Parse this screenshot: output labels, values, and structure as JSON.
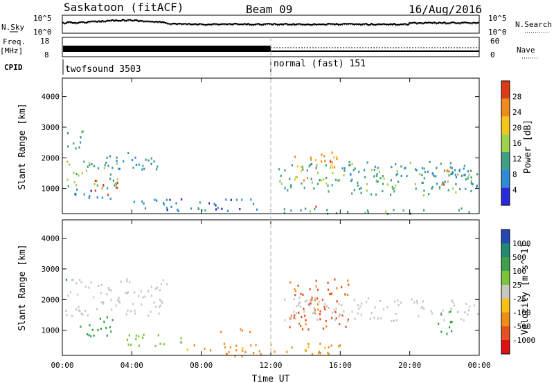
{
  "header": {
    "station": "Saskatoon (fitACF)",
    "beam": "Beam 09",
    "date": "16/Aug/2016"
  },
  "aux_panels": {
    "nsky_label": "N.Sky",
    "nsearch_label": "N.Search",
    "noise_ticks_left": [
      "10^5",
      "10^0"
    ],
    "noise_ticks_right": [
      "10^5",
      "10^0"
    ],
    "freq_label_line1": "Freq.",
    "freq_label_line2": "[MHz]",
    "freq_ticks": [
      "18",
      "8"
    ],
    "nave_label": "Nave",
    "nave_ticks": [
      "60",
      "0"
    ],
    "cpid_label": "CPID",
    "cpid_segments": [
      {
        "name": "twofsound 3503",
        "start_hour": 0,
        "end_hour": 12
      },
      {
        "name": "normal (fast) 151",
        "start_hour": 12,
        "end_hour": 24
      }
    ]
  },
  "chart_data": [
    {
      "type": "heatmap",
      "title": "",
      "ylabel": "Slant Range [km]",
      "ylim": [
        180,
        4600
      ],
      "yticks": [
        "1000",
        "2000",
        "3000",
        "4000"
      ],
      "xlim_hours": [
        0,
        24
      ],
      "colorbar": {
        "label": "Power [dB]",
        "ticks": [
          "4",
          "8",
          "12",
          "16",
          "20",
          "24",
          "28"
        ],
        "range": [
          0,
          32
        ],
        "colors": [
          "#2a2ad8",
          "#2e8bd8",
          "#3f9f86",
          "#9fd14a",
          "#f4c51b",
          "#f08a1a",
          "#e03a15"
        ]
      },
      "blobs": [
        {
          "t0": 0.1,
          "t1": 3.3,
          "r0": 1100,
          "r1": 2050,
          "level": 14
        },
        {
          "t0": 0.2,
          "t1": 1.5,
          "r0": 2300,
          "r1": 2950,
          "level": 10
        },
        {
          "t0": 2.5,
          "t1": 5.5,
          "r0": 1500,
          "r1": 2200,
          "level": 9
        },
        {
          "t0": 0.6,
          "t1": 3.2,
          "r0": 700,
          "r1": 1100,
          "level": 8
        },
        {
          "t0": 1.6,
          "t1": 3.2,
          "r0": 800,
          "r1": 1300,
          "level": 27
        },
        {
          "t0": 4.0,
          "t1": 11.5,
          "r0": 250,
          "r1": 700,
          "level": 6
        },
        {
          "t0": 12.4,
          "t1": 24.0,
          "r0": 800,
          "r1": 1900,
          "level": 12
        },
        {
          "t0": 13.3,
          "t1": 15.8,
          "r0": 1200,
          "r1": 2100,
          "level": 22
        },
        {
          "t0": 14.6,
          "t1": 15.6,
          "r0": 1900,
          "r1": 2250,
          "level": 28
        },
        {
          "t0": 14.0,
          "t1": 15.2,
          "r0": 350,
          "r1": 450,
          "level": 29
        },
        {
          "t0": 21.6,
          "t1": 22.4,
          "r0": 1150,
          "r1": 1700,
          "level": 25
        },
        {
          "t0": 16.0,
          "t1": 23.5,
          "r0": 1350,
          "r1": 1800,
          "level": 10
        },
        {
          "t0": 12.2,
          "t1": 24.0,
          "r0": 200,
          "r1": 380,
          "level": 11
        }
      ]
    },
    {
      "type": "heatmap",
      "title": "",
      "ylabel": "Slant Range [km]",
      "xlabel": "Time UT",
      "ylim": [
        180,
        4600
      ],
      "yticks": [
        "1000",
        "2000",
        "3000",
        "4000"
      ],
      "xticks": [
        "00:00",
        "04:00",
        "08:00",
        "12:00",
        "16:00",
        "20:00",
        "00:00"
      ],
      "xtick_hours": [
        0,
        4,
        8,
        12,
        16,
        20,
        24
      ],
      "colorbar": {
        "label": "Velocity [m s^-1]",
        "ticks": [
          "1000",
          "500",
          "100",
          "25",
          "-25",
          "-100",
          "-500",
          "-1000"
        ],
        "colors": [
          "#2747b4",
          "#1f8a6d",
          "#3da04c",
          "#7cc43a",
          "#c8c8c2",
          "#f8c010",
          "#f08c1a",
          "#e85020",
          "#e01010"
        ]
      },
      "blobs": [
        {
          "t0": 0.1,
          "t1": 6.0,
          "r0": 1500,
          "r1": 2700,
          "vel": 0
        },
        {
          "t0": 1.0,
          "t1": 3.2,
          "r0": 800,
          "r1": 1500,
          "vel": 250
        },
        {
          "t0": 0.0,
          "t1": 0.4,
          "r0": 2400,
          "r1": 2700,
          "vel": 150
        },
        {
          "t0": 3.5,
          "t1": 7.0,
          "r0": 500,
          "r1": 900,
          "vel": 80
        },
        {
          "t0": 7.0,
          "t1": 12.0,
          "r0": 180,
          "r1": 600,
          "vel": -120
        },
        {
          "t0": 12.0,
          "t1": 16.0,
          "r0": 180,
          "r1": 600,
          "vel": -120
        },
        {
          "t0": 13.0,
          "t1": 16.5,
          "r0": 1000,
          "r1": 2700,
          "vel": -600
        },
        {
          "t0": 12.6,
          "t1": 24.0,
          "r0": 1300,
          "r1": 2100,
          "vel": 0
        },
        {
          "t0": 21.5,
          "t1": 22.5,
          "r0": 900,
          "r1": 1700,
          "vel": 300
        },
        {
          "t0": 9.0,
          "t1": 11.0,
          "r0": 900,
          "r1": 1100,
          "vel": -200
        }
      ]
    }
  ]
}
